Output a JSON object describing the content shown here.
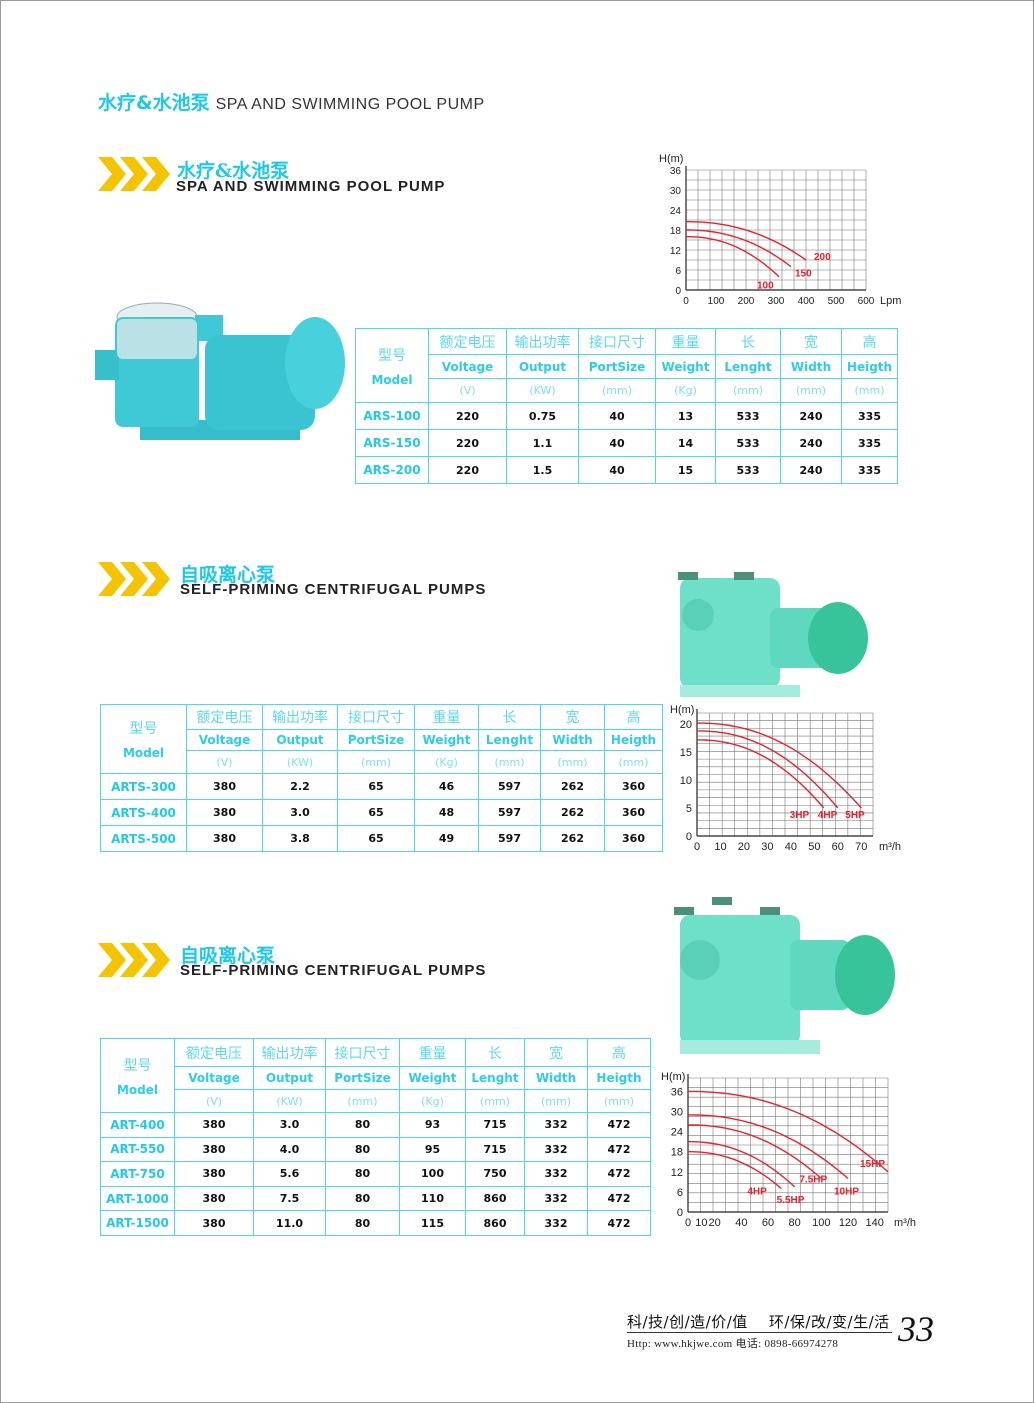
{
  "page": {
    "title_cn": "水疗&水池泵",
    "title_en": "SPA AND SWIMMING POOL PUMP",
    "page_number": "33"
  },
  "footer": {
    "slogan_left": "科/技/创/造/价/值",
    "slogan_right": "环/保/改/变/生/活",
    "contact": "Http: www.hkjwe.com  电话: 0898-66974278"
  },
  "colors": {
    "accent": "#1ec8e8",
    "chevron": "#f5c400",
    "curve": "#e8212b",
    "table_border": "#4fd6ec",
    "pump_body": "#3fc9d6"
  },
  "sections": [
    {
      "title_cn": "水疗&水池泵",
      "title_en": "SPA AND SWIMMING POOL PUMP",
      "table": {
        "headers": [
          {
            "cn": "型号",
            "en": "Model",
            "unit": ""
          },
          {
            "cn": "额定电压",
            "en": "Voltage",
            "unit": "(V)"
          },
          {
            "cn": "输出功率",
            "en": "Output",
            "unit": "(KW)"
          },
          {
            "cn": "接口尺寸",
            "en": "PortSize",
            "unit": "(mm)"
          },
          {
            "cn": "重量",
            "en": "Weight",
            "unit": "(Kg)"
          },
          {
            "cn": "长",
            "en": "Lenght",
            "unit": "(mm)"
          },
          {
            "cn": "宽",
            "en": "Width",
            "unit": "(mm)"
          },
          {
            "cn": "高",
            "en": "Heigth",
            "unit": "(mm)"
          }
        ],
        "rows": [
          [
            "ARS-100",
            "220",
            "0.75",
            "40",
            "13",
            "533",
            "240",
            "335"
          ],
          [
            "ARS-150",
            "220",
            "1.1",
            "40",
            "14",
            "533",
            "240",
            "335"
          ],
          [
            "ARS-200",
            "220",
            "1.5",
            "40",
            "15",
            "533",
            "240",
            "335"
          ]
        ]
      }
    },
    {
      "title_cn": "自吸离心泵",
      "title_en": "SELF-PRIMING CENTRIFUGAL PUMPS",
      "table": {
        "headers": [
          {
            "cn": "型号",
            "en": "Model",
            "unit": ""
          },
          {
            "cn": "额定电压",
            "en": "Voltage",
            "unit": "(V)"
          },
          {
            "cn": "输出功率",
            "en": "Output",
            "unit": "(KW)"
          },
          {
            "cn": "接口尺寸",
            "en": "PortSize",
            "unit": "(mm)"
          },
          {
            "cn": "重量",
            "en": "Weight",
            "unit": "(Kg)"
          },
          {
            "cn": "长",
            "en": "Lenght",
            "unit": "(mm)"
          },
          {
            "cn": "宽",
            "en": "Width",
            "unit": "(mm)"
          },
          {
            "cn": "高",
            "en": "Heigth",
            "unit": "(mm)"
          }
        ],
        "rows": [
          [
            "ARTS-300",
            "380",
            "2.2",
            "65",
            "46",
            "597",
            "262",
            "360"
          ],
          [
            "ARTS-400",
            "380",
            "3.0",
            "65",
            "48",
            "597",
            "262",
            "360"
          ],
          [
            "ARTS-500",
            "380",
            "3.8",
            "65",
            "49",
            "597",
            "262",
            "360"
          ]
        ]
      }
    },
    {
      "title_cn": "自吸离心泵",
      "title_en": "SELF-PRIMING CENTRIFUGAL PUMPS",
      "table": {
        "headers": [
          {
            "cn": "型号",
            "en": "Model",
            "unit": ""
          },
          {
            "cn": "额定电压",
            "en": "Voltage",
            "unit": "(V)"
          },
          {
            "cn": "输出功率",
            "en": "Output",
            "unit": "(KW)"
          },
          {
            "cn": "接口尺寸",
            "en": "PortSize",
            "unit": "(mm)"
          },
          {
            "cn": "重量",
            "en": "Weight",
            "unit": "(Kg)"
          },
          {
            "cn": "长",
            "en": "Lenght",
            "unit": "(mm)"
          },
          {
            "cn": "宽",
            "en": "Width",
            "unit": "(mm)"
          },
          {
            "cn": "高",
            "en": "Heigth",
            "unit": "(mm)"
          }
        ],
        "rows": [
          [
            "ART-400",
            "380",
            "3.0",
            "80",
            "93",
            "715",
            "332",
            "472"
          ],
          [
            "ART-550",
            "380",
            "4.0",
            "80",
            "95",
            "715",
            "332",
            "472"
          ],
          [
            "ART-750",
            "380",
            "5.6",
            "80",
            "100",
            "750",
            "332",
            "472"
          ],
          [
            "ART-1000",
            "380",
            "7.5",
            "80",
            "110",
            "860",
            "332",
            "472"
          ],
          [
            "ART-1500",
            "380",
            "11.0",
            "80",
            "115",
            "860",
            "332",
            "472"
          ]
        ]
      }
    }
  ],
  "chart_data": [
    {
      "type": "line",
      "ylabel": "H(m)",
      "xlabel": "Lpm",
      "xlim": [
        0,
        600
      ],
      "ylim": [
        0,
        36
      ],
      "xticks": [
        "0",
        "100",
        "200",
        "300",
        "400",
        "500",
        "600"
      ],
      "xtick_values": [
        0,
        100,
        200,
        300,
        400,
        500,
        600
      ],
      "yticks": [
        0,
        6,
        12,
        18,
        24,
        30,
        36
      ],
      "grid": true,
      "series": [
        {
          "name": "100",
          "x": [
            0,
            310
          ],
          "y": [
            16,
            4
          ]
        },
        {
          "name": "150",
          "x": [
            0,
            350
          ],
          "y": [
            18,
            7
          ]
        },
        {
          "name": "200",
          "x": [
            0,
            400
          ],
          "y": [
            20.5,
            9
          ]
        }
      ]
    },
    {
      "type": "line",
      "ylabel": "H(m)",
      "xlabel": "m³/h",
      "xlim": [
        0,
        75
      ],
      "ylim": [
        0,
        22
      ],
      "xticks": [
        "0",
        "10",
        "20",
        "30",
        "40",
        "50",
        "60",
        "70"
      ],
      "xtick_values": [
        0,
        10,
        20,
        30,
        40,
        50,
        60,
        70
      ],
      "yticks": [
        0,
        5,
        10,
        15,
        20
      ],
      "grid": true,
      "series": [
        {
          "name": "3HP",
          "x": [
            0,
            54
          ],
          "y": [
            17.2,
            5
          ]
        },
        {
          "name": "4HP",
          "x": [
            0,
            60
          ],
          "y": [
            18.8,
            5
          ]
        },
        {
          "name": "5HP",
          "x": [
            0,
            70
          ],
          "y": [
            20.2,
            5
          ]
        }
      ]
    },
    {
      "type": "line",
      "ylabel": "H(m)",
      "xlabel": "m³/h",
      "xlim": [
        0,
        150
      ],
      "ylim": [
        0,
        40
      ],
      "xticks": [
        "0",
        "10",
        "20",
        "40",
        "60",
        "80",
        "100",
        "120",
        "140"
      ],
      "xtick_values": [
        0,
        10,
        20,
        40,
        60,
        80,
        100,
        120,
        140
      ],
      "yticks": [
        0,
        6,
        12,
        18,
        24,
        30,
        36
      ],
      "grid": true,
      "series": [
        {
          "name": "4HP",
          "x": [
            0,
            70
          ],
          "y": [
            18,
            7
          ]
        },
        {
          "name": "5.5HP",
          "x": [
            0,
            80
          ],
          "y": [
            21,
            7.5
          ]
        },
        {
          "name": "7.5HP",
          "x": [
            0,
            100
          ],
          "y": [
            26,
            10
          ]
        },
        {
          "name": "10HP",
          "x": [
            0,
            120
          ],
          "y": [
            29,
            10
          ]
        },
        {
          "name": "15HP",
          "x": [
            0,
            150
          ],
          "y": [
            36,
            12
          ]
        }
      ]
    }
  ]
}
